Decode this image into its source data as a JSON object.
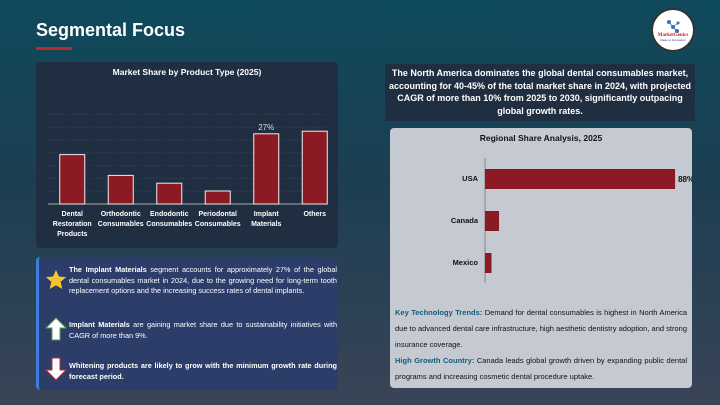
{
  "page": {
    "title": "Segmental Focus"
  },
  "logo": {
    "name": "MarketGenics",
    "tagline": "Ideas to Innovation"
  },
  "chart_data": [
    {
      "type": "bar",
      "title": "Market Share by Product Type (2025)",
      "categories": [
        "Dental Restoration Products",
        "Orthodontic Consumables",
        "Endodontic Consumables",
        "Periodontal Consumables",
        "Implant Materials",
        "Others"
      ],
      "values": [
        19,
        11,
        8,
        5,
        27,
        28
      ],
      "data_labels": {
        "Implant Materials": "27%"
      },
      "color": "#8b1a24",
      "grid": true
    },
    {
      "type": "bar",
      "orientation": "horizontal",
      "title": "Regional Share Analysis, 2025",
      "categories": [
        "USA",
        "Canada",
        "Mexico"
      ],
      "values": [
        88,
        6.5,
        3
      ],
      "data_labels": {
        "USA": "88%"
      },
      "color": "#8b1a24"
    }
  ],
  "info": {
    "items": [
      {
        "icon": "star-icon",
        "bold": "The Implant Materials",
        "text": " segment accounts for approximately 27% of the global dental consumables market in 2024, due to the growing need for long-term tooth replacement options and the increasing success rates of dental implants."
      },
      {
        "icon": "arrow-up-icon",
        "bold": "Implant Materials",
        "text": " are gaining market share due to sustainability initiatives with CAGR of more than 9%."
      },
      {
        "icon": "arrow-down-icon",
        "bold": "Whitening products are likely to grow with the minimum growth rate during forecast period.",
        "text": ""
      }
    ]
  },
  "summary": "The North America dominates the global dental consumables market, accounting for 40-45% of the total market share in 2024, with projected CAGR of more than 10% from 2025 to 2030, significantly outpacing global growth rates.",
  "regional": {
    "trends_label": "Key Technology Trends:",
    "trends_text": " Demand for dental consumables is highest in North America due to advanced dental care infrastructure, high aesthetic dentistry adoption, and strong insurance coverage.",
    "growth_label": "High Growth Country:",
    "growth_text": " Canada leads global growth driven by expanding public dental programs and increasing cosmetic dental procedure uptake."
  }
}
